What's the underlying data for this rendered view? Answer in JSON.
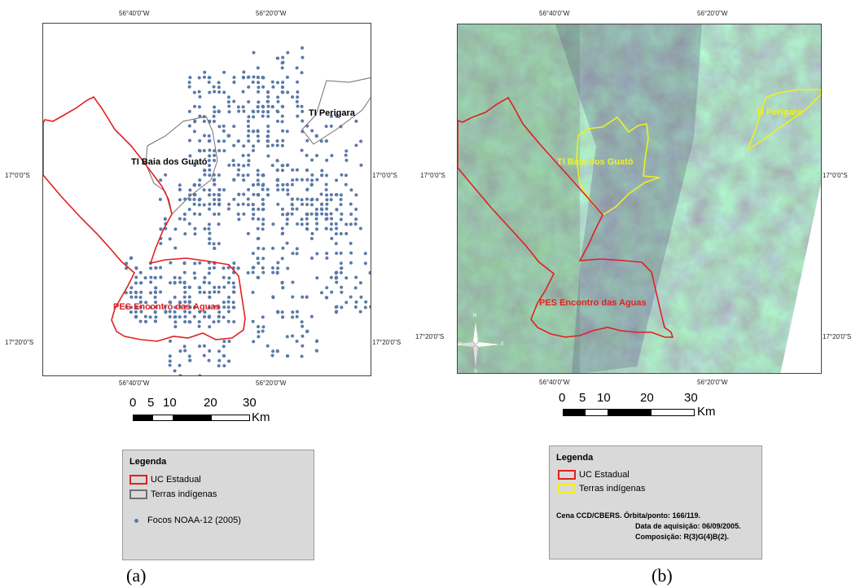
{
  "map_a": {
    "top_lon_labels": [
      "56°40'0\"W",
      "56°20'0\"W"
    ],
    "bottom_lon_labels": [
      "56°40'0\"W",
      "56°20'0\"W"
    ],
    "left_lat_labels": [
      "17°0'0\"S",
      "17°20'0\"S"
    ],
    "right_lat_labels": [
      "17°0'0\"S",
      "17°20'0\"S"
    ],
    "labels": {
      "ti_perigara": "TI Perigara",
      "ti_baia": "TI Baia dos Guató",
      "pes": "PES  Encontro das Aguas"
    },
    "scale": {
      "ticks": [
        "0",
        "5",
        "10",
        "20",
        "30"
      ],
      "unit": "Km"
    },
    "legend": {
      "title": "Legenda",
      "items": [
        "UC Estadual",
        "Terras indígenas",
        "Focos NOAA-12 (2005)"
      ]
    },
    "caption": "(a)",
    "colors": {
      "uc": "#e02020",
      "ti": "#707070",
      "focos": "#5b7aa8"
    }
  },
  "map_b": {
    "top_lon_labels": [
      "56°40'0\"W",
      "56°20'0\"W"
    ],
    "bottom_lon_labels": [
      "56°40'0\"W",
      "56°20'0\"W"
    ],
    "left_lat_labels": [
      "17°0'0\"S",
      "17°20'0\"S"
    ],
    "right_lat_labels": [
      "17°0'0\"S",
      "17°20'0\"S"
    ],
    "labels": {
      "ti_perigara": "TI Perigara",
      "ti_baia": "TI Baia dos Guató",
      "pes": "PES  Encontro das Aguas"
    },
    "north_arrow": {
      "n": "N",
      "s": "S",
      "e": "E",
      "w": "W"
    },
    "scale": {
      "ticks": [
        "0",
        "5",
        "10",
        "20",
        "30"
      ],
      "unit": "Km"
    },
    "legend": {
      "title": "Legenda",
      "items": [
        "UC Estadual",
        "Terras indígenas"
      ],
      "scene": [
        "Cena CCD/CBERS.  Órbita/ponto: 166/119.",
        "Data de aquisição: 06/09/2005.",
        "Composição: R(3)G(4)B(2)."
      ]
    },
    "caption": "(b)",
    "colors": {
      "uc": "#e02020",
      "ti": "#f0f020"
    }
  }
}
